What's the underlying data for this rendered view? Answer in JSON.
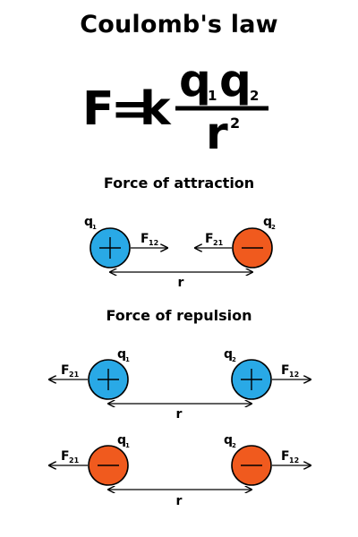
{
  "title": "Coulomb's law",
  "formula": {
    "lhs": "F",
    "equals": "=",
    "constant": "k",
    "numerator_q": "q",
    "sub_1": "1",
    "sub_2": "2",
    "denominator": "r",
    "exponent": "2"
  },
  "attraction": {
    "heading": "Force of attraction",
    "charge_left": {
      "label": "q",
      "sub": "1",
      "sign": "plus"
    },
    "charge_right": {
      "label": "q",
      "sub": "2",
      "sign": "minus"
    },
    "force_left": {
      "label": "F",
      "sub": "12"
    },
    "force_right": {
      "label": "F",
      "sub": "21"
    },
    "distance": "r"
  },
  "repulsion": {
    "heading": "Force of repulsion",
    "positive_pair": {
      "charge_left": {
        "label": "q",
        "sub": "1",
        "sign": "plus"
      },
      "charge_right": {
        "label": "q",
        "sub": "2",
        "sign": "plus"
      },
      "force_left": {
        "label": "F",
        "sub": "21"
      },
      "force_right": {
        "label": "F",
        "sub": "12"
      },
      "distance": "r"
    },
    "negative_pair": {
      "charge_left": {
        "label": "q",
        "sub": "1",
        "sign": "minus"
      },
      "charge_right": {
        "label": "q",
        "sub": "2",
        "sign": "minus"
      },
      "force_left": {
        "label": "F",
        "sub": "21"
      },
      "force_right": {
        "label": "F",
        "sub": "12"
      },
      "distance": "r"
    }
  },
  "colors": {
    "positive_fill": "#29a9e6",
    "negative_fill": "#f05a1e",
    "text": "#000000"
  }
}
